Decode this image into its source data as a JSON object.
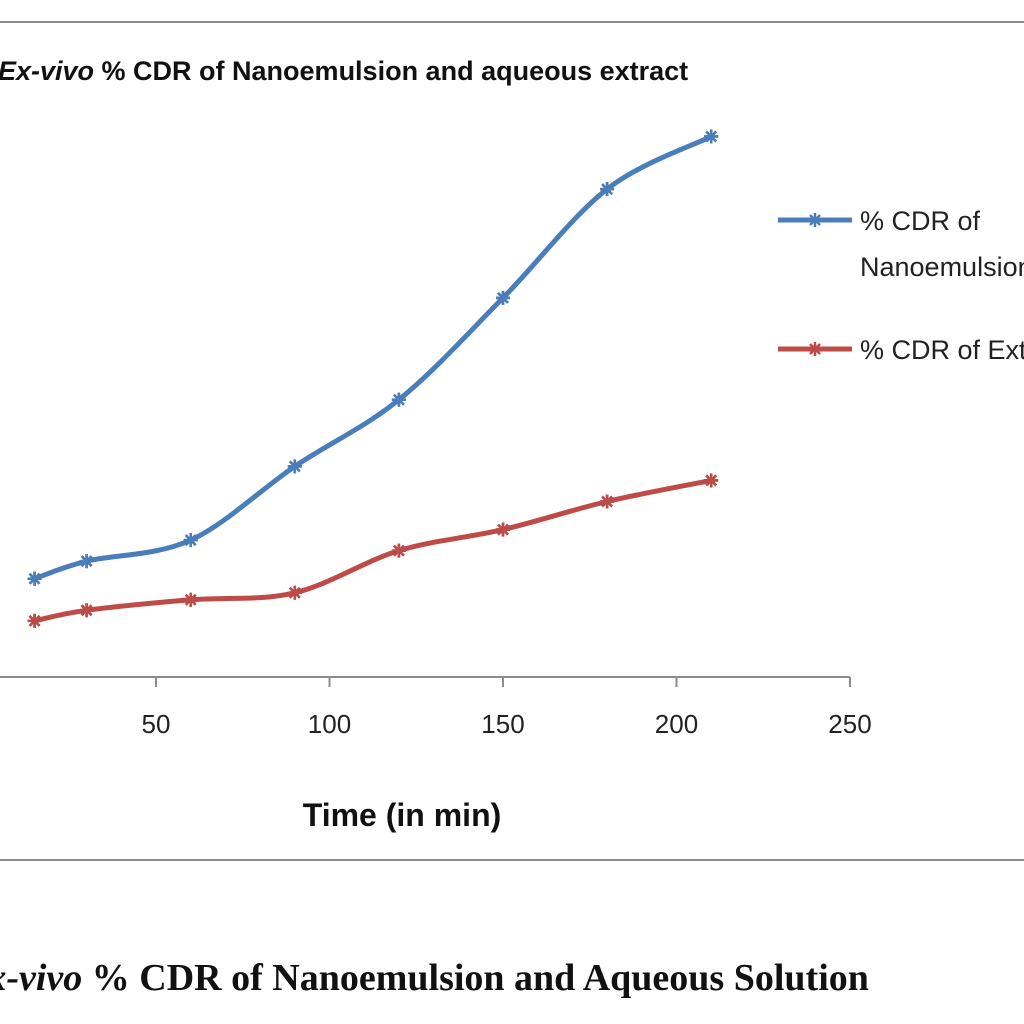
{
  "chart_data": {
    "type": "line",
    "title_italic": "Ex-vivo",
    "title_rest": " % CDR of Nanoemulsion and aqueous extract",
    "xlabel": "Time  (in min)",
    "ylabel": "",
    "xlim": [
      0,
      250
    ],
    "x_ticks": [
      "50",
      "100",
      "150",
      "200",
      "250"
    ],
    "legend_position": "right",
    "series": [
      {
        "name_lines": [
          "% CDR of",
          "Nanoemulsion"
        ],
        "color": "#4a7ebb",
        "x": [
          15,
          30,
          60,
          90,
          120,
          150,
          180,
          210
        ],
        "y": [
          14,
          16.5,
          19.5,
          30,
          39.5,
          54,
          69.5,
          77
        ]
      },
      {
        "name_lines": [
          "% CDR of Extract"
        ],
        "color": "#be4b48",
        "x": [
          15,
          30,
          60,
          90,
          120,
          150,
          180,
          210
        ],
        "y": [
          8,
          9.5,
          11,
          12,
          18,
          21,
          25,
          28
        ]
      }
    ]
  },
  "caption": {
    "italic": "Ex-vivo",
    "rest": " % CDR of Nanoemulsion and Aqueous Solution"
  }
}
